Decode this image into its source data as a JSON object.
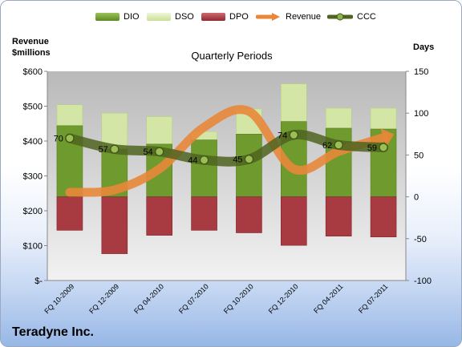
{
  "colors": {
    "dio": "#6f9a2e",
    "dso": "#d3e6a6",
    "dpo": "#a83a42",
    "revenue": "#e8873a",
    "ccc": "#4f6420"
  },
  "legend_items": [
    {
      "label": "DIO",
      "key": "dio",
      "kind": "box"
    },
    {
      "label": "DSO",
      "key": "dso",
      "kind": "box"
    },
    {
      "label": "DPO",
      "key": "dpo",
      "kind": "box"
    },
    {
      "label": "Revenue",
      "key": "revenue",
      "kind": "arrow"
    },
    {
      "label": "CCC",
      "key": "ccc",
      "kind": "line-dot"
    }
  ],
  "titles": {
    "left_axis_line1": "Revenue",
    "left_axis_line2": "$millions",
    "right_axis": "Days",
    "subtitle": "Quarterly Periods",
    "company": "Teradyne Inc."
  },
  "chart_data": {
    "type": "bar",
    "title": "Quarterly Periods",
    "categories": [
      "FQ 10-2009",
      "FQ 12-2009",
      "FQ 04-2010",
      "FQ 07-2010",
      "FQ 10-2010",
      "FQ 12-2010",
      "FQ 04-2011",
      "FQ 07-2011"
    ],
    "left_axis": {
      "label": "Revenue $millions",
      "ylim": [
        0,
        600
      ],
      "ticks": [
        0,
        100,
        200,
        300,
        400,
        500,
        600
      ],
      "tick_labels": [
        "$-",
        "$100",
        "$200",
        "$300",
        "$400",
        "$500",
        "$600"
      ]
    },
    "right_axis": {
      "label": "Days",
      "ylim": [
        -100,
        150
      ],
      "ticks": [
        -100,
        -50,
        0,
        50,
        100,
        150
      ],
      "tick_labels": [
        "-100",
        "-50",
        "0",
        "50",
        "100",
        "150"
      ]
    },
    "series": [
      {
        "name": "DIO",
        "axis": "days",
        "values": [
          85,
          57,
          63,
          68,
          75,
          90,
          82,
          81
        ]
      },
      {
        "name": "DSO",
        "axis": "days",
        "values": [
          25,
          43,
          33,
          10,
          30,
          45,
          24,
          25
        ]
      },
      {
        "name": "DPO",
        "axis": "days",
        "values": [
          -40,
          -68,
          -46,
          -40,
          -43,
          -58,
          -47,
          -48
        ]
      },
      {
        "name": "Revenue",
        "axis": "revenue",
        "type": "line",
        "values": [
          253,
          260,
          320,
          440,
          485,
          320,
          370,
          410
        ]
      },
      {
        "name": "CCC",
        "axis": "days",
        "type": "line",
        "values": [
          70,
          57,
          54,
          44,
          45,
          74,
          62,
          59
        ]
      }
    ],
    "data_labels": [
      "70",
      "57",
      "54",
      "44",
      "45",
      "74",
      "62",
      "59"
    ],
    "grid": false,
    "legend": "top"
  }
}
